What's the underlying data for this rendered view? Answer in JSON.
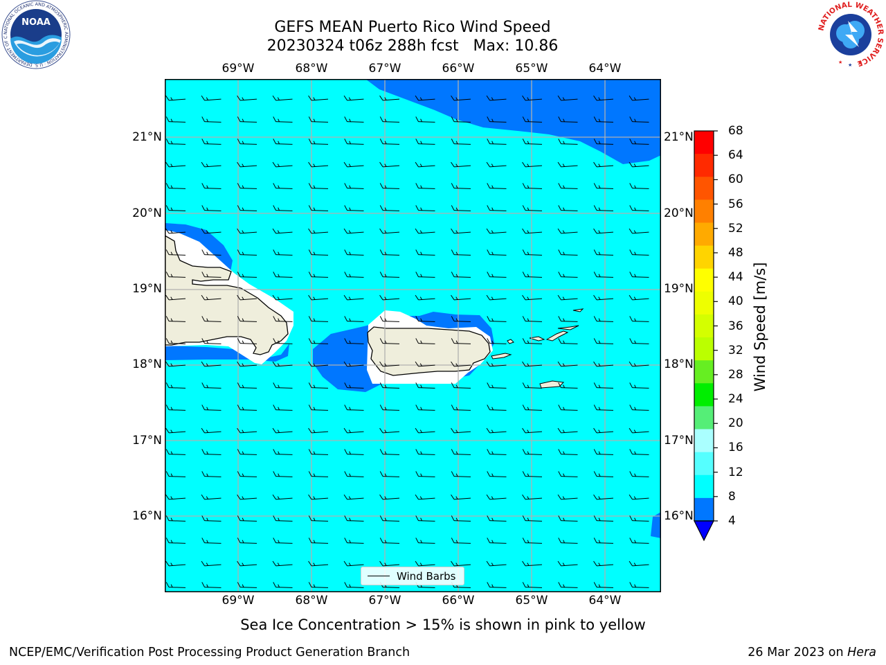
{
  "title": {
    "line1": "GEFS MEAN Puerto Rico Wind Speed",
    "line2": "20230324 t06z 288h fcst   Max: 10.86"
  },
  "map": {
    "lon_labels": [
      "69°W",
      "68°W",
      "67°W",
      "66°W",
      "65°W",
      "64°W"
    ],
    "lat_labels": [
      "21°N",
      "20°N",
      "19°N",
      "18°N",
      "17°N",
      "16°N"
    ],
    "extent": {
      "lon_min": -70.0,
      "lon_max": -63.25,
      "lat_min": 15.0,
      "lat_max": 21.75
    },
    "colors": {
      "ocean_fill": "#00ffff",
      "low_wind_fill": "#0077ff",
      "land": "#efeedc",
      "grid": "#b0b0b0"
    }
  },
  "legend": {
    "label": "Wind Barbs"
  },
  "colorbar": {
    "label": "Wind Speed [m/s]",
    "ticks": [
      "68",
      "64",
      "60",
      "56",
      "52",
      "48",
      "44",
      "40",
      "36",
      "32",
      "28",
      "24",
      "20",
      "16",
      "12",
      "8",
      "4"
    ],
    "colors": [
      "#ff0000",
      "#ff2a00",
      "#ff5500",
      "#ff8000",
      "#ffaa00",
      "#ffd400",
      "#ffff00",
      "#eeff00",
      "#d4ff00",
      "#bbff00",
      "#66ee22",
      "#00ee00",
      "#55ee77",
      "#aaffff",
      "#55ffff",
      "#00ffff",
      "#0077ff"
    ],
    "extend_color": "#0000ff"
  },
  "footer": {
    "note": "Sea Ice Concentration > 15% is shown in pink to yellow",
    "credit": "NCEP/EMC/Verification Post Processing Product Generation Branch",
    "date": "26 Mar 2023 on ",
    "machine": "Hera"
  },
  "logos": {
    "noaa_text": "NOAA",
    "nws_text": "NATIONAL WEATHER SERVICE",
    "noaa_ring_text": "NATIONAL OCEANIC AND ATMOSPHERIC ADMINISTRATION · U.S. DEPARTMENT OF COMMERCE"
  }
}
